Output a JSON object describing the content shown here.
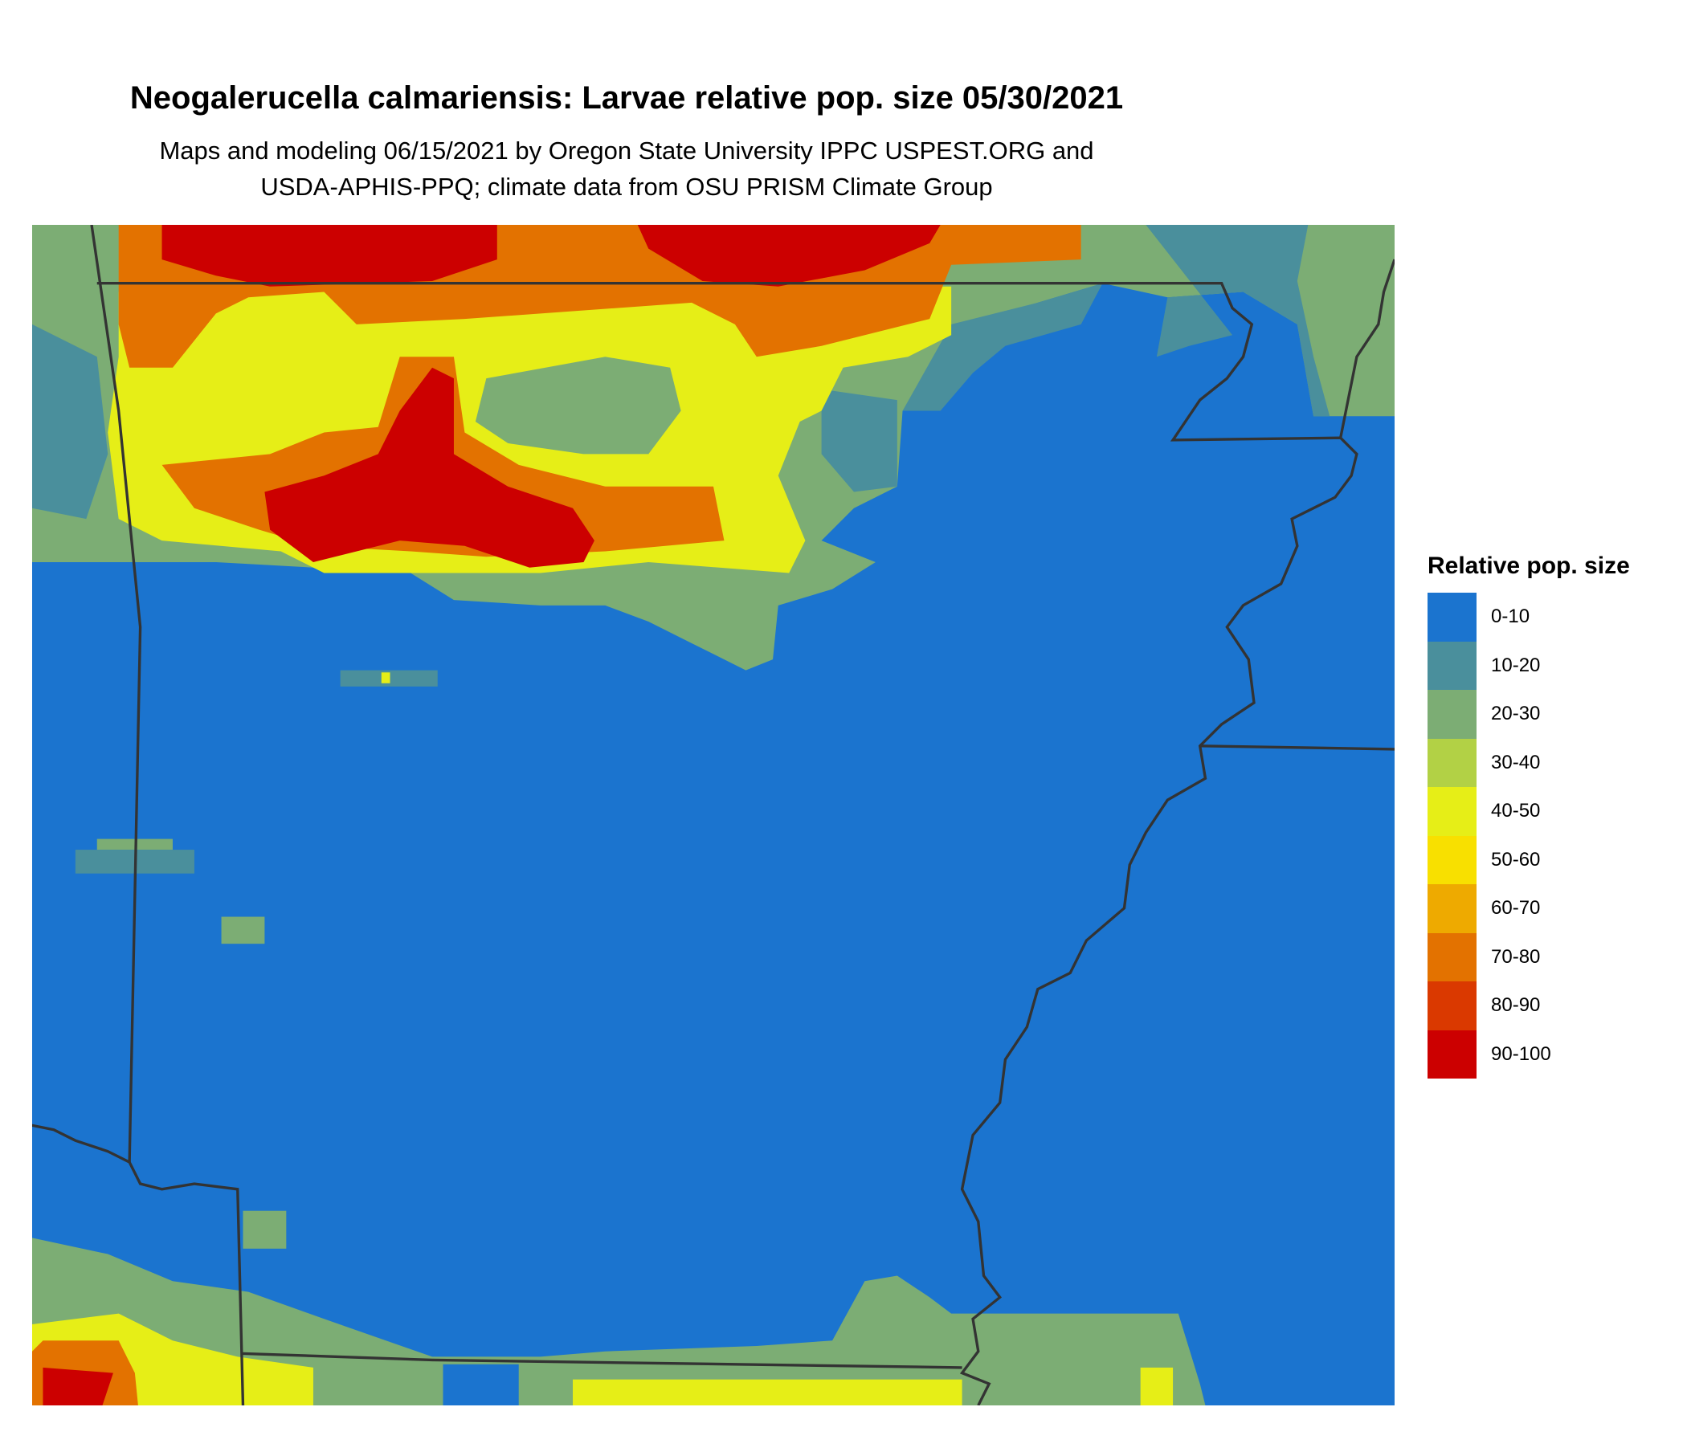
{
  "title": "Neogalerucella calmariensis: Larvae relative pop. size 05/30/2021",
  "subtitle_lines": [
    "Maps and modeling 06/15/2021 by Oregon State University IPPC USPEST.ORG and",
    "USDA-APHIS-PPQ; climate data from OSU PRISM Climate Group"
  ],
  "legend": {
    "title": "Relative pop. size",
    "items": [
      {
        "label": "0-10",
        "color": "#1b74cf"
      },
      {
        "label": "10-20",
        "color": "#4a8f9c"
      },
      {
        "label": "20-30",
        "color": "#7cad74"
      },
      {
        "label": "30-40",
        "color": "#b2d145"
      },
      {
        "label": "40-50",
        "color": "#e6ee17"
      },
      {
        "label": "50-60",
        "color": "#f8e000"
      },
      {
        "label": "60-70",
        "color": "#eeaa00"
      },
      {
        "label": "70-80",
        "color": "#e37200"
      },
      {
        "label": "80-90",
        "color": "#da3900"
      },
      {
        "label": "90-100",
        "color": "#cc0000"
      }
    ]
  },
  "map": {
    "background_class": "0-10",
    "boundary_color": "#333333"
  }
}
